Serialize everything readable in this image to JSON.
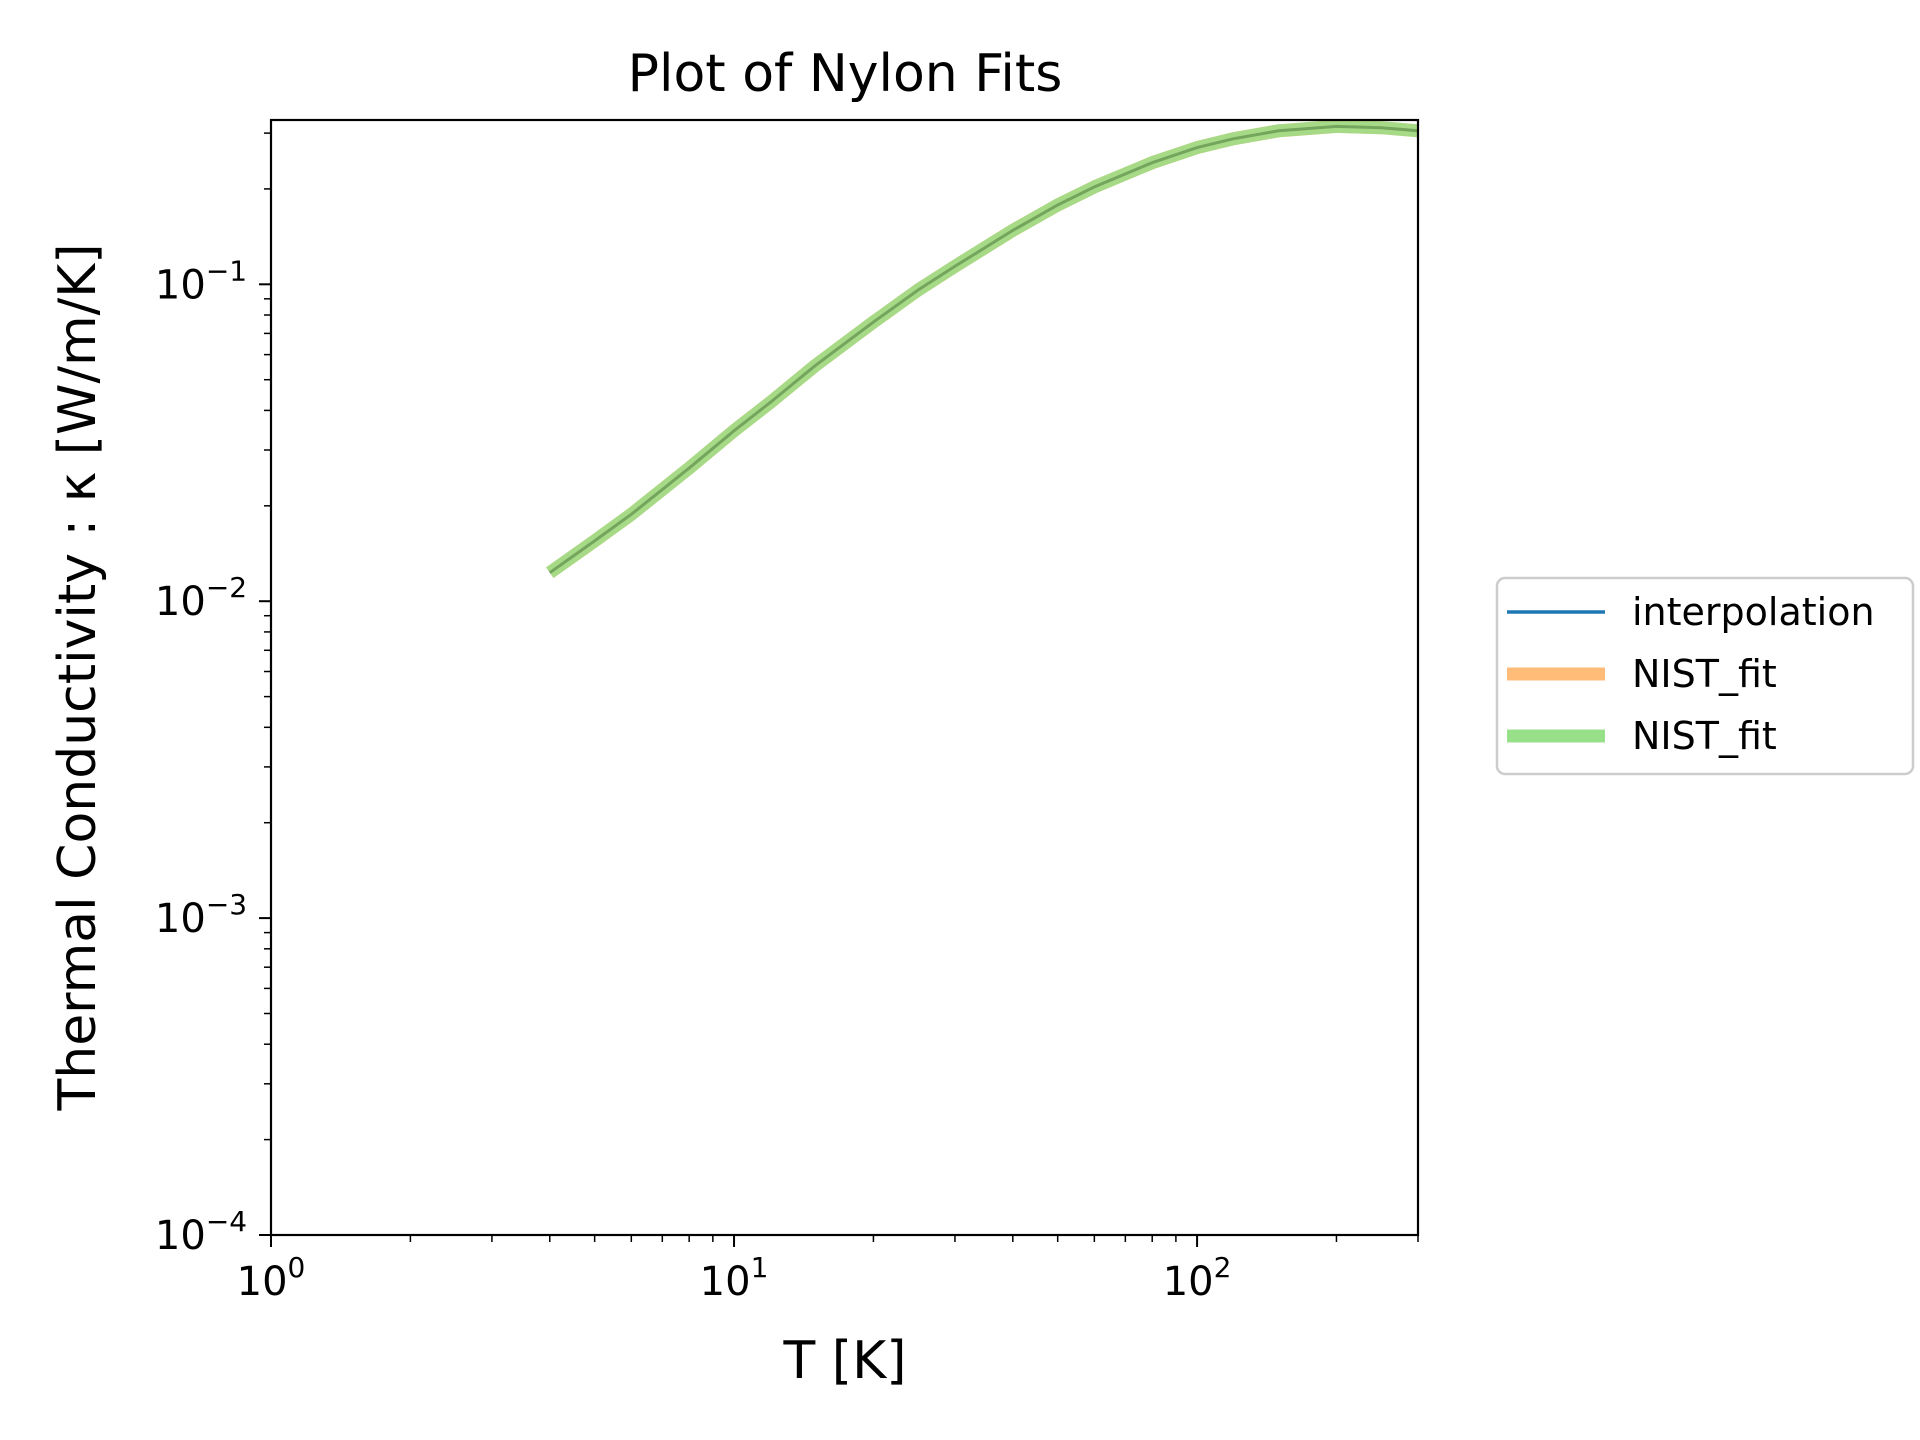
{
  "chart_data": {
    "type": "line",
    "title": "Plot of Nylon Fits",
    "xlabel": "T [K]",
    "ylabel": "Thermal Conductivity : κ [W/m/K]",
    "xscale": "log",
    "yscale": "log",
    "xlim": [
      1,
      300
    ],
    "ylim": [
      0.0001,
      0.33
    ],
    "grid": false,
    "legend_position": "outside-right",
    "x_ticks": [
      {
        "base": "10",
        "exp": "0"
      },
      {
        "base": "10",
        "exp": "1"
      },
      {
        "base": "10",
        "exp": "2"
      }
    ],
    "y_ticks": [
      {
        "base": "10",
        "exp": "−4"
      },
      {
        "base": "10",
        "exp": "−3"
      },
      {
        "base": "10",
        "exp": "−2"
      },
      {
        "base": "10",
        "exp": "−1"
      }
    ],
    "series": [
      {
        "name": "interpolation",
        "color": "#1f77b4",
        "x": [
          4,
          5,
          6,
          8,
          10,
          12,
          15,
          20,
          25,
          30,
          40,
          50,
          60,
          80,
          100,
          120,
          150,
          200,
          250,
          300
        ],
        "values": [
          0.0123,
          0.0155,
          0.0188,
          0.0263,
          0.0345,
          0.0425,
          0.0555,
          0.076,
          0.096,
          0.114,
          0.148,
          0.178,
          0.203,
          0.242,
          0.27,
          0.288,
          0.305,
          0.315,
          0.312,
          0.305
        ]
      },
      {
        "name": "NIST_fit",
        "color": "#ffbb78",
        "x": [
          4,
          5,
          6,
          8,
          10,
          12,
          15,
          20,
          25,
          30,
          40,
          50,
          60,
          80,
          100,
          120,
          150,
          200,
          250,
          300
        ],
        "values": [
          0.0123,
          0.0155,
          0.0188,
          0.0263,
          0.0345,
          0.0425,
          0.0555,
          0.076,
          0.096,
          0.114,
          0.148,
          0.178,
          0.203,
          0.242,
          0.27,
          0.288,
          0.305,
          0.315,
          0.312,
          0.305
        ]
      },
      {
        "name": "NIST_fit",
        "color": "#98df8a",
        "x": [
          4,
          5,
          6,
          8,
          10,
          12,
          15,
          20,
          25,
          30,
          40,
          50,
          60,
          80,
          100,
          120,
          150,
          200,
          250,
          300
        ],
        "values": [
          0.0123,
          0.0155,
          0.0188,
          0.0263,
          0.0345,
          0.0425,
          0.0555,
          0.076,
          0.096,
          0.114,
          0.148,
          0.178,
          0.203,
          0.242,
          0.27,
          0.288,
          0.305,
          0.315,
          0.312,
          0.305
        ]
      }
    ]
  }
}
